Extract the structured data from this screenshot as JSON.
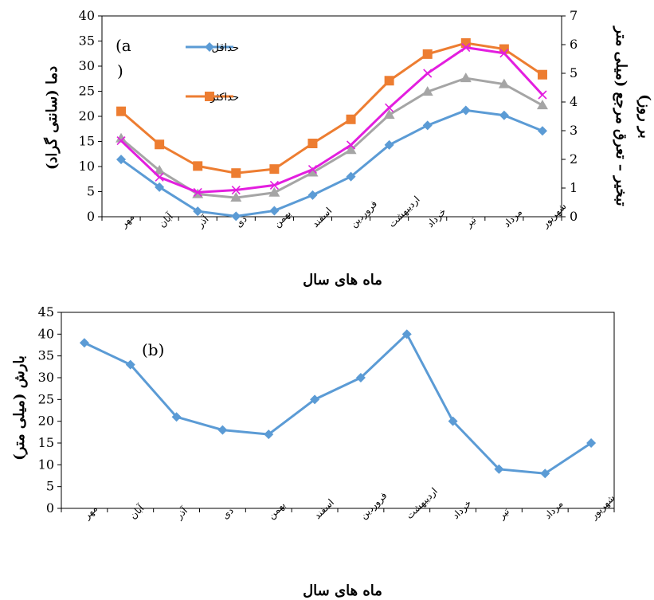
{
  "chart_data": [
    {
      "type": "line",
      "panel_label": "(a",
      "panel_label_cont": ")",
      "categories": [
        "مهر",
        "آبان",
        "آذر",
        "دی",
        "بهمن",
        "اسفند",
        "فروردین",
        "اردیبهشت",
        "خرداد",
        "تیر",
        "مرداد",
        "شهریور"
      ],
      "xlabel": "ماه های سال",
      "ylabel": "دما (سانتی گراد)",
      "y2label_line1": "تبخیر – تعرق مرجع (میلی متر",
      "y2label_line2": "بر روز)",
      "ylim": [
        0,
        40
      ],
      "yticks": [
        "0",
        "5",
        "10",
        "15",
        "20",
        "25",
        "30",
        "35",
        "40"
      ],
      "y2lim": [
        0,
        7
      ],
      "y2ticks": [
        "0",
        "1",
        "2",
        "3",
        "4",
        "5",
        "6",
        "7"
      ],
      "legend_position": "top-center",
      "grid": false,
      "series": [
        {
          "name": "حداقل",
          "axis": "left",
          "color": "#5B9BD5",
          "marker": "diamond",
          "in_legend": true,
          "values": [
            11.4,
            5.9,
            1.1,
            0.1,
            1.2,
            4.3,
            8.0,
            14.3,
            18.2,
            21.2,
            20.2,
            17.1
          ]
        },
        {
          "name": "حداکثر",
          "axis": "left",
          "color": "#ED7D31",
          "marker": "square",
          "in_legend": true,
          "values": [
            21.0,
            14.4,
            10.1,
            8.7,
            9.5,
            14.6,
            19.4,
            27.1,
            32.4,
            34.6,
            33.4,
            28.3
          ]
        },
        {
          "axis": "left",
          "color": "#A5A5A5",
          "marker": "triangle",
          "in_legend": false,
          "values": [
            15.6,
            9.2,
            4.5,
            3.8,
            4.8,
            8.8,
            13.3,
            20.3,
            24.9,
            27.6,
            26.4,
            22.2
          ]
        },
        {
          "axis": "right",
          "color": "#E31EDF",
          "marker": "x",
          "in_legend": false,
          "values": [
            2.65,
            1.38,
            0.85,
            0.93,
            1.1,
            1.65,
            2.5,
            3.8,
            5.0,
            5.9,
            5.7,
            4.25
          ]
        }
      ]
    },
    {
      "type": "line",
      "panel_label": "(b)",
      "categories": [
        "مهر",
        "آبان",
        "آذر",
        "دی",
        "بهمن",
        "اسفند",
        "فروردین",
        "اردیبهشت",
        "خرداد",
        "تیر",
        "مرداد",
        "شهریور"
      ],
      "xlabel": "ماه های سال",
      "ylabel": "بارش (میلی متر)",
      "ylim": [
        0,
        45
      ],
      "yticks": [
        "0",
        "5",
        "10",
        "15",
        "20",
        "25",
        "30",
        "35",
        "40",
        "45"
      ],
      "grid": false,
      "series": [
        {
          "color": "#5B9BD5",
          "marker": "diamond",
          "values": [
            38,
            33,
            21,
            18,
            17,
            25,
            30,
            40,
            20,
            9,
            8,
            15
          ]
        }
      ]
    }
  ]
}
